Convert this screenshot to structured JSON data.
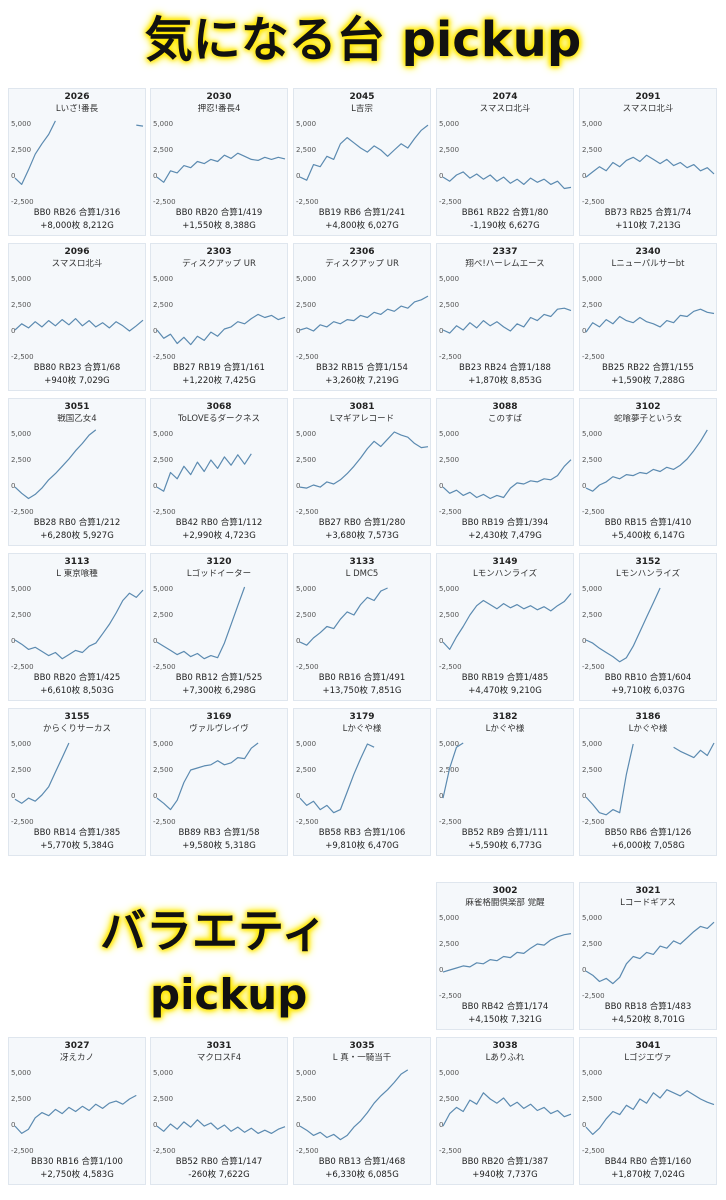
{
  "headings": {
    "featured": "気になる台 pickup",
    "variety_line1": "バラエティ",
    "variety_line2": "pickup"
  },
  "colors": {
    "line": "#5b8ab0",
    "card_bg": "#f5f8fb",
    "highlight": "#ffe600"
  },
  "axis": {
    "ymin": -2500,
    "ymax": 5000,
    "tick_labels": [
      "5,000",
      "2,500",
      "0",
      "-2,500"
    ],
    "tick_values": [
      5000,
      2500,
      0,
      -2500
    ]
  },
  "chart_data": [
    {
      "type": "line",
      "machine": "2026",
      "name": "Lいざ!番長",
      "stats1": "BB0 RB26 合算1/316",
      "stats2": "+8,000枚 8,212G",
      "y": [
        -300,
        -900,
        500,
        2000,
        3000,
        3900,
        5200,
        null,
        null,
        null,
        null,
        null,
        null,
        null,
        null,
        null,
        null,
        null,
        4800,
        4700
      ],
      "ylim": [
        -2500,
        5000
      ]
    },
    {
      "type": "line",
      "machine": "2030",
      "name": "押忍!番長4",
      "stats1": "BB0 RB20 合算1/419",
      "stats2": "+1,550枚 8,388G",
      "y": [
        -200,
        -700,
        400,
        200,
        900,
        700,
        1300,
        1100,
        1500,
        1300,
        1900,
        1600,
        2100,
        1800,
        1500,
        1400,
        1700,
        1500,
        1700,
        1550
      ],
      "ylim": [
        -2500,
        5000
      ]
    },
    {
      "type": "line",
      "machine": "2045",
      "name": "L吉宗",
      "stats1": "BB19 RB6 合算1/241",
      "stats2": "+4,800枚 6,027G",
      "y": [
        -200,
        -500,
        1000,
        800,
        1800,
        1500,
        3000,
        3600,
        3100,
        2600,
        2200,
        2800,
        2400,
        1800,
        2400,
        3000,
        2600,
        3500,
        4300,
        4800
      ],
      "ylim": [
        -2500,
        5000
      ]
    },
    {
      "type": "line",
      "machine": "2074",
      "name": "スマスロ北斗",
      "stats1": "BB61 RB22 合算1/80",
      "stats2": "-1,190枚 6,627G",
      "y": [
        -200,
        -600,
        0,
        300,
        -300,
        100,
        -400,
        0,
        -600,
        -200,
        -800,
        -400,
        -900,
        -300,
        -700,
        -400,
        -900,
        -600,
        -1300,
        -1190
      ],
      "ylim": [
        -2500,
        5000
      ]
    },
    {
      "type": "line",
      "machine": "2091",
      "name": "スマスロ北斗",
      "stats1": "BB73 RB25 合算1/74",
      "stats2": "+110枚 7,213G",
      "y": [
        -200,
        300,
        800,
        400,
        1200,
        800,
        1400,
        1700,
        1300,
        1900,
        1500,
        1100,
        1500,
        900,
        1200,
        700,
        1000,
        400,
        700,
        110
      ],
      "ylim": [
        -2500,
        5000
      ]
    },
    {
      "type": "line",
      "machine": "2096",
      "name": "スマスロ北斗",
      "stats1": "BB80 RB23 合算1/68",
      "stats2": "+940枚 7,029G",
      "y": [
        0,
        600,
        200,
        800,
        300,
        900,
        400,
        1000,
        500,
        1100,
        400,
        900,
        300,
        700,
        200,
        800,
        400,
        -100,
        400,
        940
      ],
      "ylim": [
        -2500,
        5000
      ]
    },
    {
      "type": "line",
      "machine": "2303",
      "name": "ディスクアップ UR",
      "stats1": "BB27 RB19 合算1/161",
      "stats2": "+1,220枚 7,425G",
      "y": [
        0,
        -800,
        -400,
        -1300,
        -700,
        -1400,
        -600,
        -1000,
        -200,
        -600,
        100,
        300,
        800,
        600,
        1100,
        1500,
        1200,
        1400,
        1000,
        1220
      ],
      "ylim": [
        -2500,
        5000
      ]
    },
    {
      "type": "line",
      "machine": "2306",
      "name": "ディスクアップ UR",
      "stats1": "BB32 RB15 合算1/154",
      "stats2": "+3,260枚 7,219G",
      "y": [
        0,
        200,
        -100,
        500,
        300,
        800,
        600,
        1000,
        900,
        1400,
        1200,
        1700,
        1500,
        2000,
        1800,
        2300,
        2100,
        2700,
        2900,
        3260
      ],
      "ylim": [
        -2500,
        5000
      ]
    },
    {
      "type": "line",
      "machine": "2337",
      "name": "翔べ!ハーレムエース",
      "stats1": "BB23 RB24 合算1/188",
      "stats2": "+1,870枚 8,853G",
      "y": [
        0,
        -300,
        400,
        0,
        700,
        200,
        900,
        400,
        800,
        300,
        -100,
        600,
        300,
        1200,
        900,
        1500,
        1300,
        2000,
        2100,
        1870
      ],
      "ylim": [
        -2500,
        5000
      ]
    },
    {
      "type": "line",
      "machine": "2340",
      "name": "Lニューパルサーbt",
      "stats1": "BB25 RB22 合算1/155",
      "stats2": "+1,590枚 7,288G",
      "y": [
        -200,
        700,
        300,
        1000,
        600,
        1300,
        900,
        700,
        1200,
        800,
        600,
        300,
        900,
        700,
        1400,
        1300,
        1800,
        2000,
        1700,
        1590
      ],
      "ylim": [
        -2500,
        5000
      ]
    },
    {
      "type": "line",
      "machine": "3051",
      "name": "戦国乙女4",
      "stats1": "BB28 RB0 合算1/212",
      "stats2": "+6,280枚 5,927G",
      "y": [
        -200,
        -800,
        -1300,
        -900,
        -300,
        500,
        1100,
        1800,
        2500,
        3300,
        4000,
        4800,
        5300,
        null,
        null,
        null,
        null,
        null,
        null,
        null
      ],
      "ylim": [
        -2500,
        5000
      ]
    },
    {
      "type": "line",
      "machine": "3068",
      "name": "ToLOVEるダークネス",
      "stats1": "BB42 RB0 合算1/112",
      "stats2": "+2,990枚 4,723G",
      "y": [
        -200,
        -600,
        1200,
        600,
        1800,
        1000,
        2200,
        1300,
        2400,
        1600,
        2700,
        1900,
        2900,
        2000,
        3000,
        null,
        null,
        null,
        null,
        null
      ],
      "ylim": [
        -2500,
        5000
      ]
    },
    {
      "type": "line",
      "machine": "3081",
      "name": "Lマギアレコード",
      "stats1": "BB27 RB0 合算1/280",
      "stats2": "+3,680枚 7,573G",
      "y": [
        -200,
        -300,
        0,
        -200,
        300,
        100,
        500,
        1100,
        1800,
        2600,
        3500,
        4200,
        3700,
        4400,
        5100,
        4800,
        4600,
        4000,
        3600,
        3680
      ],
      "ylim": [
        -2500,
        5000
      ]
    },
    {
      "type": "line",
      "machine": "3088",
      "name": "このすば",
      "stats1": "BB0 RB19 合算1/394",
      "stats2": "+2,430枚 7,479G",
      "y": [
        -200,
        -800,
        -500,
        -1000,
        -700,
        -1200,
        -900,
        -1300,
        -1000,
        -1200,
        -300,
        200,
        100,
        400,
        300,
        600,
        500,
        900,
        1800,
        2430
      ],
      "ylim": [
        -2500,
        5000
      ]
    },
    {
      "type": "line",
      "machine": "3102",
      "name": "蛇喰夢子という女",
      "stats1": "BB0 RB15 合算1/410",
      "stats2": "+5,400枚 6,147G",
      "y": [
        -300,
        -600,
        0,
        300,
        800,
        600,
        1000,
        900,
        1200,
        1100,
        1500,
        1300,
        1700,
        1500,
        1900,
        2500,
        3300,
        4200,
        5400,
        null
      ],
      "ylim": [
        -2500,
        5000
      ]
    },
    {
      "type": "line",
      "machine": "3113",
      "name": "L 東京喰種",
      "stats1": "BB0 RB20 合算1/425",
      "stats2": "+6,610枚 8,503G",
      "y": [
        0,
        -400,
        -900,
        -700,
        -1100,
        -1500,
        -1200,
        -1800,
        -1400,
        -1000,
        -1200,
        -600,
        -300,
        600,
        1500,
        2600,
        3800,
        4500,
        4100,
        4800
      ],
      "ylim": [
        -2500,
        5000
      ]
    },
    {
      "type": "line",
      "machine": "3120",
      "name": "Lゴッドイーター",
      "stats1": "BB0 RB12 合算1/525",
      "stats2": "+7,300枚 6,298G",
      "y": [
        -200,
        -600,
        -1000,
        -1400,
        -1100,
        -1600,
        -1300,
        -1800,
        -1500,
        -1700,
        -300,
        1500,
        3300,
        5100,
        null,
        null,
        null,
        null,
        null,
        null
      ],
      "ylim": [
        -2500,
        5000
      ]
    },
    {
      "type": "line",
      "machine": "3133",
      "name": "L DMC5",
      "stats1": "BB0 RB16 合算1/491",
      "stats2": "+13,750枚 7,851G",
      "y": [
        -200,
        -500,
        200,
        700,
        1300,
        1100,
        2000,
        2700,
        2400,
        3400,
        4100,
        3800,
        4700,
        5000,
        null,
        null,
        null,
        null,
        null,
        null
      ],
      "ylim": [
        -2500,
        5000
      ]
    },
    {
      "type": "line",
      "machine": "3149",
      "name": "Lモンハンライズ",
      "stats1": "BB0 RB19 合算1/485",
      "stats2": "+4,470枚 9,210G",
      "y": [
        -200,
        -900,
        300,
        1300,
        2400,
        3300,
        3800,
        3400,
        3000,
        3500,
        3100,
        3400,
        3000,
        3300,
        2900,
        3200,
        2800,
        3300,
        3700,
        4470
      ],
      "ylim": [
        -2500,
        5000
      ]
    },
    {
      "type": "line",
      "machine": "3152",
      "name": "Lモンハンライズ",
      "stats1": "BB0 RB10 合算1/604",
      "stats2": "+9,710枚 6,037G",
      "y": [
        0,
        -300,
        -800,
        -1200,
        -1600,
        -2100,
        -1700,
        -600,
        800,
        2200,
        3600,
        5000,
        null,
        null,
        null,
        null,
        null,
        null,
        null,
        null
      ],
      "ylim": [
        -2500,
        5000
      ]
    },
    {
      "type": "line",
      "machine": "3155",
      "name": "からくりサーカス",
      "stats1": "BB0 RB14 合算1/385",
      "stats2": "+5,770枚 5,384G",
      "y": [
        -400,
        -800,
        -300,
        -600,
        0,
        800,
        2200,
        3600,
        5000,
        null,
        null,
        null,
        null,
        null,
        null,
        null,
        null,
        null,
        null,
        null
      ],
      "ylim": [
        -2500,
        5000
      ]
    },
    {
      "type": "line",
      "machine": "3169",
      "name": "ヴァルヴレイヴ",
      "stats1": "BB89 RB3 合算1/58",
      "stats2": "+9,580枚 5,318G",
      "y": [
        -300,
        -800,
        -1400,
        -500,
        1200,
        2400,
        2600,
        2800,
        2900,
        3300,
        2900,
        3100,
        3600,
        3500,
        4500,
        5000,
        null,
        null,
        null,
        null
      ],
      "ylim": [
        -2500,
        5000
      ]
    },
    {
      "type": "line",
      "machine": "3179",
      "name": "Lかぐや様",
      "stats1": "BB58 RB3 合算1/106",
      "stats2": "+9,810枚 6,470G",
      "y": [
        -300,
        -1000,
        -600,
        -1400,
        -1000,
        -1700,
        -1400,
        300,
        2000,
        3500,
        4900,
        4600,
        null,
        null,
        null,
        null,
        null,
        null,
        null,
        null
      ],
      "ylim": [
        -2500,
        5000
      ]
    },
    {
      "type": "line",
      "machine": "3182",
      "name": "Lかぐや様",
      "stats1": "BB52 RB9 合算1/111",
      "stats2": "+5,590枚 6,773G",
      "y": [
        -300,
        2600,
        4600,
        5000,
        null,
        null,
        null,
        null,
        null,
        null,
        null,
        null,
        null,
        null,
        null,
        null,
        null,
        null,
        null,
        null
      ],
      "ylim": [
        -2500,
        5000
      ]
    },
    {
      "type": "line",
      "machine": "3186",
      "name": "Lかぐや様",
      "stats1": "BB50 RB6 合算1/126",
      "stats2": "+6,000枚 7,058G",
      "y": [
        -200,
        -900,
        -1700,
        -1900,
        -1400,
        -1700,
        2000,
        4900,
        null,
        null,
        null,
        null,
        null,
        4600,
        4200,
        3900,
        3600,
        4300,
        3800,
        5000
      ],
      "ylim": [
        -2500,
        5000
      ]
    },
    {
      "type": "line",
      "machine": "3002",
      "name": "麻雀格闘倶楽部 覚醒",
      "stats1": "BB0 RB42 合算1/174",
      "stats2": "+4,150枚 7,321G",
      "y": [
        -300,
        -100,
        100,
        300,
        200,
        600,
        500,
        900,
        800,
        1200,
        1100,
        1600,
        1500,
        2000,
        2400,
        2300,
        2800,
        3100,
        3300,
        3400
      ],
      "ylim": [
        -2500,
        5000
      ]
    },
    {
      "type": "line",
      "machine": "3021",
      "name": "Lコードギアス",
      "stats1": "BB0 RB18 合算1/483",
      "stats2": "+4,520枚 8,701G",
      "y": [
        -200,
        -600,
        -1200,
        -900,
        -1400,
        -800,
        500,
        1200,
        1000,
        1600,
        1400,
        2200,
        2000,
        2700,
        2400,
        3000,
        3600,
        4100,
        3900,
        4500
      ],
      "ylim": [
        -2500,
        5000
      ]
    },
    {
      "type": "line",
      "machine": "3027",
      "name": "冴えカノ",
      "stats1": "BB30 RB16 合算1/100",
      "stats2": "+2,750枚 4,583G",
      "y": [
        -200,
        -900,
        -500,
        600,
        1100,
        800,
        1400,
        1000,
        1600,
        1200,
        1700,
        1300,
        1900,
        1500,
        2000,
        2200,
        1900,
        2400,
        2750,
        null
      ],
      "ylim": [
        -2500,
        5000
      ]
    },
    {
      "type": "line",
      "machine": "3031",
      "name": "マクロスF4",
      "stats1": "BB52 RB0 合算1/147",
      "stats2": "-260枚 7,622G",
      "y": [
        -200,
        -700,
        0,
        -500,
        200,
        -300,
        400,
        -200,
        100,
        -500,
        -100,
        -700,
        -300,
        -800,
        -400,
        -900,
        -600,
        -900,
        -500,
        -260
      ],
      "ylim": [
        -2500,
        5000
      ]
    },
    {
      "type": "line",
      "machine": "3035",
      "name": "L 真・一騎当千",
      "stats1": "BB0 RB13 合算1/468",
      "stats2": "+6,330枚 6,085G",
      "y": [
        -200,
        -600,
        -1100,
        -800,
        -1300,
        -1000,
        -1500,
        -1100,
        -300,
        300,
        1100,
        2000,
        2700,
        3300,
        4000,
        4800,
        5200,
        null,
        null,
        null
      ],
      "ylim": [
        -2500,
        5000
      ]
    },
    {
      "type": "line",
      "machine": "3038",
      "name": "Lありふれ",
      "stats1": "BB0 RB20 合算1/387",
      "stats2": "+940枚 7,737G",
      "y": [
        -200,
        1000,
        1600,
        1200,
        2300,
        1900,
        3000,
        2400,
        2000,
        2500,
        1700,
        2100,
        1500,
        1900,
        1300,
        1600,
        1000,
        1300,
        700,
        940
      ],
      "ylim": [
        -2500,
        5000
      ]
    },
    {
      "type": "line",
      "machine": "3041",
      "name": "Lゴジエヴァ",
      "stats1": "BB44 RB0 合算1/160",
      "stats2": "+1,870枚 7,024G",
      "y": [
        -300,
        -1000,
        -400,
        500,
        1200,
        900,
        1800,
        1400,
        2400,
        2000,
        3000,
        2500,
        3300,
        3000,
        2700,
        3200,
        2800,
        2400,
        2100,
        1870
      ],
      "ylim": [
        -2500,
        5000
      ]
    }
  ]
}
